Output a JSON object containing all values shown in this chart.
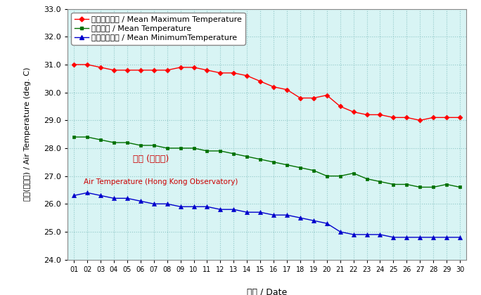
{
  "days": [
    1,
    2,
    3,
    4,
    5,
    6,
    7,
    8,
    9,
    10,
    11,
    12,
    13,
    14,
    15,
    16,
    17,
    18,
    19,
    20,
    21,
    22,
    23,
    24,
    25,
    26,
    27,
    28,
    29,
    30
  ],
  "mean_max": [
    31.0,
    31.0,
    30.9,
    30.8,
    30.8,
    30.8,
    30.8,
    30.8,
    30.9,
    30.9,
    30.8,
    30.7,
    30.7,
    30.6,
    30.4,
    30.2,
    30.1,
    29.8,
    29.8,
    29.9,
    29.5,
    29.3,
    29.2,
    29.2,
    29.1,
    29.1,
    29.0,
    29.1,
    29.1,
    29.1
  ],
  "mean_temp": [
    28.4,
    28.4,
    28.3,
    28.2,
    28.2,
    28.1,
    28.1,
    28.0,
    28.0,
    28.0,
    27.9,
    27.9,
    27.8,
    27.7,
    27.6,
    27.5,
    27.4,
    27.3,
    27.2,
    27.0,
    27.0,
    27.1,
    26.9,
    26.8,
    26.7,
    26.7,
    26.6,
    26.6,
    26.7,
    26.6
  ],
  "mean_min": [
    26.3,
    26.4,
    26.3,
    26.2,
    26.2,
    26.1,
    26.0,
    26.0,
    25.9,
    25.9,
    25.9,
    25.8,
    25.8,
    25.7,
    25.7,
    25.6,
    25.6,
    25.5,
    25.4,
    25.3,
    25.0,
    24.9,
    24.9,
    24.9,
    24.8,
    24.8,
    24.8,
    24.8,
    24.8,
    24.8
  ],
  "color_max": "#ff0000",
  "color_mean": "#007000",
  "color_min": "#0000cc",
  "bg_color": "#d8f4f4",
  "ylabel_en": "Air Temperature (deg. C)",
  "ylabel_zh": "氣溫(攝氏度)",
  "xlabel_en": "Date",
  "xlabel_zh": "日期",
  "legend_max_zh": "平均最高氣溫",
  "legend_max_en": "Mean Maximum Temperature",
  "legend_mean_zh": "平均氣溫",
  "legend_mean_en": "Mean Temperature",
  "legend_min_zh": "平均最低氣溫",
  "legend_min_en": "Mean MinimumTemperature",
  "annotation_zh": "氣溫 (天文台)",
  "annotation_en": "Air Temperature (Hong Kong Observatory)",
  "ylim": [
    24.0,
    33.0
  ],
  "yticks": [
    24.0,
    25.0,
    26.0,
    27.0,
    28.0,
    29.0,
    30.0,
    31.0,
    32.0,
    33.0
  ]
}
